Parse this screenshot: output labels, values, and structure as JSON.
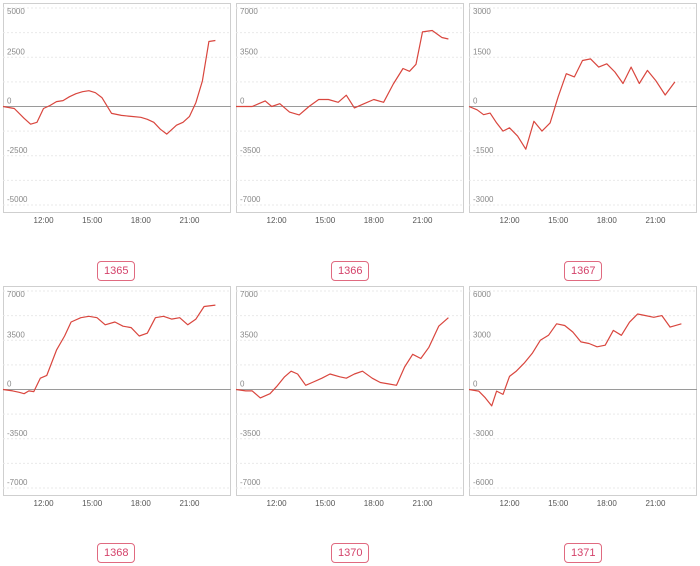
{
  "chart_data": [
    {
      "type": "line",
      "label": "1365",
      "x_ticks": [
        "12:00",
        "15:00",
        "18:00",
        "21:00"
      ],
      "y_ticks": [
        5000,
        2500,
        0,
        -2500,
        -5000
      ],
      "ylim": [
        -5000,
        5000
      ],
      "xlim": [
        9.5,
        23.5
      ],
      "grid": true,
      "x": [
        9.5,
        10.2,
        10.8,
        11.2,
        11.6,
        12.0,
        12.4,
        12.8,
        13.2,
        13.6,
        14.0,
        14.4,
        14.8,
        15.2,
        15.6,
        16.2,
        16.8,
        17.4,
        18.0,
        18.4,
        18.8,
        19.2,
        19.6,
        20.2,
        20.6,
        21.0,
        21.4,
        21.8,
        22.2,
        22.6
      ],
      "series": [
        {
          "values": [
            0,
            -100,
            -600,
            -900,
            -800,
            -100,
            50,
            250,
            300,
            500,
            650,
            750,
            800,
            700,
            450,
            -350,
            -450,
            -500,
            -550,
            -650,
            -800,
            -1150,
            -1400,
            -950,
            -800,
            -500,
            200,
            1300,
            3300,
            3350
          ]
        }
      ]
    },
    {
      "type": "line",
      "label": "1366",
      "x_ticks": [
        "12:00",
        "15:00",
        "18:00",
        "21:00"
      ],
      "y_ticks": [
        7000,
        3500,
        0,
        -3500,
        -7000
      ],
      "ylim": [
        -7000,
        7000
      ],
      "xlim": [
        9.5,
        23.5
      ],
      "grid": true,
      "x": [
        9.5,
        10.0,
        10.5,
        10.9,
        11.3,
        11.7,
        12.2,
        12.8,
        13.4,
        14.0,
        14.6,
        15.2,
        15.8,
        16.3,
        16.8,
        17.4,
        18.0,
        18.6,
        19.2,
        19.8,
        20.2,
        20.6,
        21.0,
        21.6,
        22.2,
        22.6
      ],
      "series": [
        {
          "values": [
            0,
            0,
            0,
            200,
            400,
            0,
            200,
            -400,
            -600,
            0,
            500,
            500,
            300,
            800,
            -100,
            200,
            500,
            300,
            1600,
            2700,
            2500,
            3000,
            5300,
            5400,
            4900,
            4800
          ]
        }
      ]
    },
    {
      "type": "line",
      "label": "1367",
      "x_ticks": [
        "12:00",
        "15:00",
        "18:00",
        "21:00"
      ],
      "y_ticks": [
        3000,
        1500,
        0,
        -1500,
        -3000
      ],
      "ylim": [
        -3000,
        3000
      ],
      "xlim": [
        9.5,
        23.5
      ],
      "grid": true,
      "x": [
        9.5,
        10.0,
        10.4,
        10.8,
        11.2,
        11.6,
        12.0,
        12.5,
        13.0,
        13.5,
        14.0,
        14.5,
        15.0,
        15.5,
        16.0,
        16.5,
        17.0,
        17.5,
        18.0,
        18.5,
        19.0,
        19.5,
        20.0,
        20.5,
        21.0,
        21.6,
        22.2
      ],
      "series": [
        {
          "values": [
            0,
            -100,
            -250,
            -200,
            -500,
            -750,
            -650,
            -900,
            -1300,
            -450,
            -750,
            -500,
            300,
            1000,
            900,
            1400,
            1450,
            1200,
            1300,
            1050,
            700,
            1200,
            700,
            1100,
            800,
            350,
            750
          ]
        }
      ]
    },
    {
      "type": "line",
      "label": "1368",
      "x_ticks": [
        "12:00",
        "15:00",
        "18:00",
        "21:00"
      ],
      "y_ticks": [
        7000,
        3500,
        0,
        -3500,
        -7000
      ],
      "ylim": [
        -7000,
        7000
      ],
      "xlim": [
        9.5,
        23.5
      ],
      "grid": true,
      "x": [
        9.5,
        10.1,
        10.5,
        10.8,
        11.1,
        11.4,
        11.8,
        12.2,
        12.8,
        13.3,
        13.7,
        14.3,
        14.8,
        15.3,
        15.8,
        16.4,
        16.9,
        17.4,
        17.9,
        18.4,
        18.9,
        19.4,
        19.9,
        20.4,
        20.9,
        21.4,
        21.9,
        22.6
      ],
      "series": [
        {
          "values": [
            0,
            -100,
            -200,
            -300,
            -100,
            -150,
            800,
            1000,
            2800,
            3800,
            4800,
            5100,
            5200,
            5100,
            4600,
            4800,
            4500,
            4400,
            3800,
            4000,
            5100,
            5200,
            5000,
            5100,
            4600,
            5000,
            5900,
            6000
          ]
        }
      ]
    },
    {
      "type": "line",
      "label": "1370",
      "x_ticks": [
        "12:00",
        "15:00",
        "18:00",
        "21:00"
      ],
      "y_ticks": [
        7000,
        3500,
        0,
        -3500,
        -7000
      ],
      "ylim": [
        -7000,
        7000
      ],
      "xlim": [
        9.5,
        23.5
      ],
      "grid": true,
      "x": [
        9.5,
        10.1,
        10.5,
        11.0,
        11.6,
        12.0,
        12.5,
        12.9,
        13.3,
        13.8,
        14.2,
        14.8,
        15.3,
        15.9,
        16.3,
        16.8,
        17.3,
        17.9,
        18.4,
        18.9,
        19.4,
        19.9,
        20.4,
        20.9,
        21.4,
        22.0,
        22.6
      ],
      "series": [
        {
          "values": [
            0,
            -100,
            -100,
            -600,
            -300,
            200,
            900,
            1300,
            1100,
            300,
            500,
            800,
            1100,
            900,
            800,
            1100,
            1300,
            800,
            500,
            400,
            300,
            1600,
            2500,
            2200,
            3000,
            4500,
            5100
          ]
        }
      ]
    },
    {
      "type": "line",
      "label": "1371",
      "x_ticks": [
        "12:00",
        "15:00",
        "18:00",
        "21:00"
      ],
      "y_ticks": [
        6000,
        3000,
        0,
        -3000,
        -6000
      ],
      "ylim": [
        -6000,
        6000
      ],
      "xlim": [
        9.5,
        23.5
      ],
      "grid": true,
      "x": [
        9.5,
        10.1,
        10.5,
        10.9,
        11.2,
        11.6,
        12.0,
        12.4,
        12.9,
        13.4,
        13.9,
        14.4,
        14.9,
        15.4,
        15.9,
        16.4,
        16.9,
        17.4,
        17.9,
        18.4,
        18.9,
        19.4,
        19.9,
        20.4,
        20.9,
        21.4,
        21.9,
        22.6
      ],
      "series": [
        {
          "values": [
            0,
            -100,
            -500,
            -1000,
            -100,
            -300,
            800,
            1100,
            1600,
            2200,
            3000,
            3300,
            4000,
            3900,
            3500,
            2900,
            2800,
            2600,
            2700,
            3600,
            3300,
            4100,
            4600,
            4500,
            4400,
            4500,
            3800,
            4000
          ]
        }
      ]
    }
  ],
  "colors": {
    "line": "#d9463e",
    "badge_border": "#e06a80",
    "badge_text": "#d4426a"
  }
}
